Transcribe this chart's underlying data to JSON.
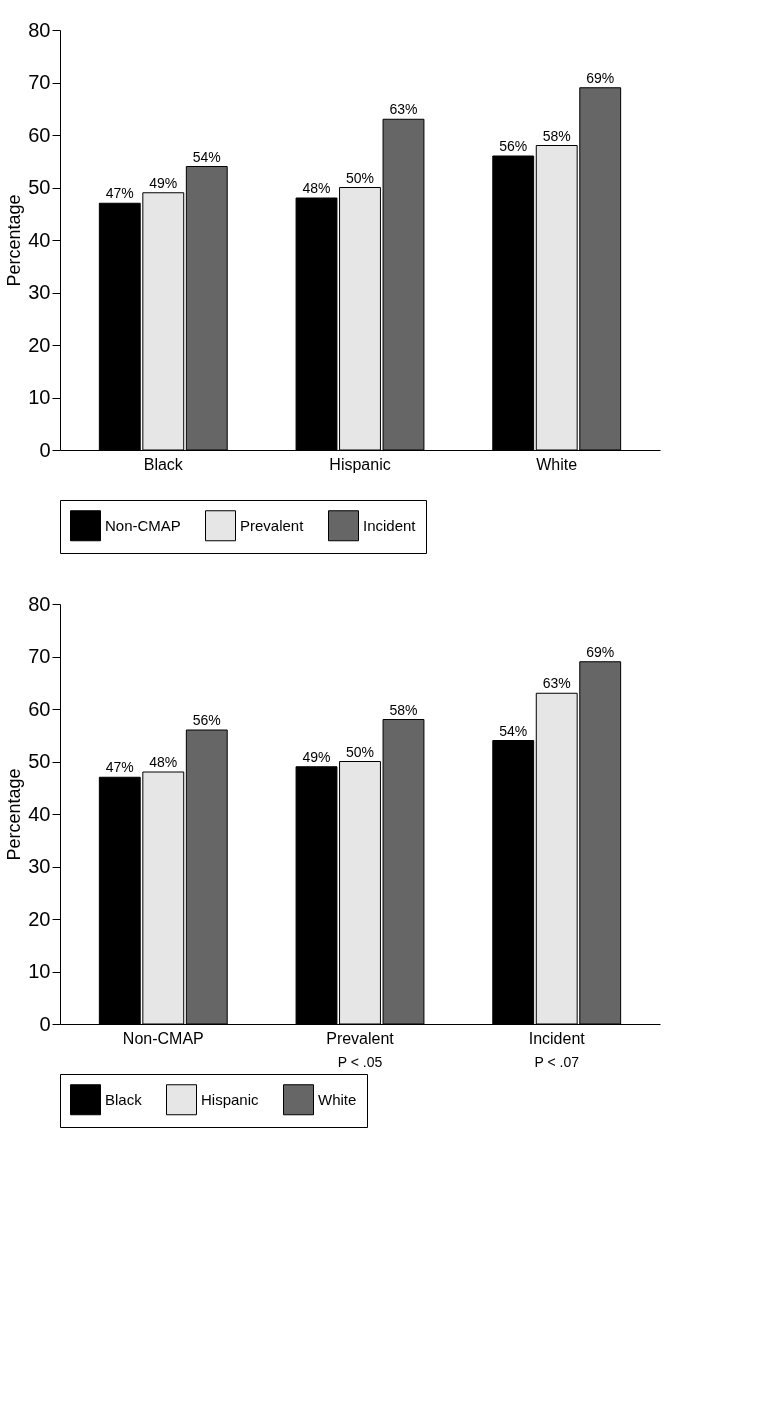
{
  "chart_data": [
    {
      "type": "bar",
      "categories": [
        "Black",
        "Hispanic",
        "White"
      ],
      "ylabel": "Percentage",
      "ylim": [
        0,
        80
      ],
      "yticks": [
        0,
        10,
        20,
        30,
        40,
        50,
        60,
        70,
        80
      ],
      "grid": false,
      "legend": "bottom",
      "series": [
        {
          "name": "Non-CMAP",
          "color": "#000000",
          "values": [
            47,
            48,
            56
          ],
          "value_labels": [
            "47%",
            "48%",
            "56%"
          ]
        },
        {
          "name": "Prevalent",
          "color": "#e6e6e6",
          "values": [
            49,
            50,
            58
          ],
          "value_labels": [
            "49%",
            "50%",
            "58%"
          ]
        },
        {
          "name": "Incident",
          "color": "#666666",
          "values": [
            54,
            63,
            69
          ],
          "value_labels": [
            "54%",
            "63%",
            "69%"
          ]
        }
      ]
    },
    {
      "type": "bar",
      "categories": [
        "Non-CMAP",
        "Prevalent",
        "Incident"
      ],
      "ylabel": "Percentage",
      "ylim": [
        0,
        80
      ],
      "yticks": [
        0,
        10,
        20,
        30,
        40,
        50,
        60,
        70,
        80
      ],
      "grid": false,
      "legend": "bottom",
      "annotations": [
        "P < .05",
        "P < .07"
      ],
      "series": [
        {
          "name": "Black",
          "color": "#000000",
          "values": [
            47,
            49,
            54
          ],
          "value_labels": [
            "47%",
            "49%",
            "54%"
          ]
        },
        {
          "name": "Hispanic",
          "color": "#e6e6e6",
          "values": [
            48,
            50,
            63
          ],
          "value_labels": [
            "48%",
            "50%",
            "63%"
          ]
        },
        {
          "name": "White",
          "color": "#666666",
          "values": [
            56,
            58,
            69
          ],
          "value_labels": [
            "56%",
            "58%",
            "69%"
          ]
        }
      ]
    }
  ]
}
